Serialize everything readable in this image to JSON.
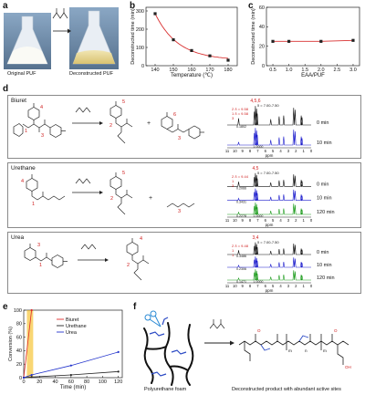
{
  "panel_a": {
    "label": "a",
    "original_caption": "Original PUF",
    "deconstructed_caption": "Deconstructed PUF"
  },
  "panel_b": {
    "label": "b",
    "chart_data": {
      "type": "scatter",
      "xlabel": "Temperature (℃)",
      "ylabel": "Deconstructed time (min)",
      "xlim": [
        135,
        185
      ],
      "ylim": [
        0,
        320
      ],
      "xticks": [
        "140",
        "150",
        "160",
        "170",
        "180"
      ],
      "yticks": [
        "0",
        "100",
        "200",
        "300"
      ],
      "x": [
        140,
        150,
        160,
        170,
        180
      ],
      "y": [
        285,
        142,
        83,
        54,
        30
      ],
      "color": "#d93030"
    }
  },
  "panel_c": {
    "label": "c",
    "chart_data": {
      "type": "line",
      "xlabel": "EAA/PUF",
      "ylabel": "Deconstructed time (min)",
      "xlim": [
        0.3,
        3.2
      ],
      "ylim": [
        0,
        60
      ],
      "xticks": [
        "0.5",
        "1.0",
        "1.5",
        "2.0",
        "2.5",
        "3.0"
      ],
      "yticks": [
        "0",
        "20",
        "40",
        "60"
      ],
      "x": [
        0.5,
        1.0,
        2.0,
        3.0
      ],
      "y": [
        25,
        25,
        25,
        26
      ],
      "color": "#d93030"
    }
  },
  "panel_d": {
    "label": "d",
    "rows": [
      {
        "title": "Biuret",
        "reactant_labels": [
          "4",
          "1",
          "3"
        ],
        "product_labels": [
          "5",
          "2",
          "6",
          "3"
        ],
        "spectrum": {
          "peak_group_label": "4,5,6",
          "shift_range": "δ = 7.00-7.50",
          "annotations": [
            "2 δ = 9.58",
            "1 δ = 9.58",
            "3"
          ],
          "integrals": [
            "0.1802",
            "1.0000"
          ],
          "times": [
            "0 min",
            "10 min"
          ],
          "colors": [
            "#111111",
            "#1a1acc"
          ]
        }
      },
      {
        "title": "Urethane",
        "reactant_labels": [
          "4",
          "1"
        ],
        "product_labels": [
          "5",
          "2",
          "3"
        ],
        "spectrum": {
          "peak_group_label": "4,5",
          "shift_range": "δ = 7.00-7.50",
          "annotations": [
            "2 δ = 9.44",
            "1",
            "3"
          ],
          "integrals": [
            "0.2066",
            "0.3431",
            "0.2278",
            "1.0000"
          ],
          "times": [
            "0 min",
            "10 min",
            "120 min"
          ],
          "colors": [
            "#111111",
            "#1a1acc",
            "#1a9a1a"
          ]
        }
      },
      {
        "title": "Urea",
        "reactant_labels": [
          "3",
          "1"
        ],
        "product_labels": [
          "4",
          "2"
        ],
        "spectrum": {
          "peak_group_label": "3,4",
          "shift_range": "δ = 7.00-7.50",
          "annotations": [
            "2 δ = 9.48",
            "1",
            "1"
          ],
          "integrals": [
            "0.3486",
            "0.2306",
            "0.1471",
            "1.0000"
          ],
          "times": [
            "0 min",
            "10 min",
            "120 min"
          ],
          "colors": [
            "#111111",
            "#1a1acc",
            "#1a9a1a"
          ]
        }
      }
    ],
    "ppm_axis": {
      "ticks": [
        "11",
        "10",
        "9",
        "8",
        "7",
        "6",
        "5",
        "4",
        "3",
        "2",
        "1",
        "0"
      ],
      "label": "ppm"
    }
  },
  "panel_e": {
    "label": "e",
    "chart_data": {
      "type": "line",
      "xlabel": "Time (min)",
      "ylabel": "Conversion (%)",
      "xlim": [
        0,
        125
      ],
      "ylim": [
        0,
        100
      ],
      "xticks": [
        "0",
        "20",
        "40",
        "60",
        "80",
        "100",
        "120"
      ],
      "yticks": [
        "0",
        "20",
        "40",
        "60",
        "80",
        "100"
      ],
      "series": [
        {
          "name": "Biuret",
          "color": "#e02b2b",
          "x": [
            0,
            10
          ],
          "y": [
            0,
            100
          ]
        },
        {
          "name": "Urethane",
          "color": "#222222",
          "x": [
            0,
            10,
            60,
            120
          ],
          "y": [
            0,
            1,
            4,
            9
          ]
        },
        {
          "name": "Urea",
          "color": "#2233cc",
          "x": [
            0,
            10,
            60,
            120
          ],
          "y": [
            0,
            4,
            18,
            38
          ]
        }
      ],
      "highlight_color": "#f4b400"
    }
  },
  "panel_f": {
    "label": "f",
    "left_caption": "Polyurethane foam",
    "right_caption": "Deconstructed product with abundant active sites",
    "subscripts": [
      "m",
      "m",
      "n"
    ]
  }
}
